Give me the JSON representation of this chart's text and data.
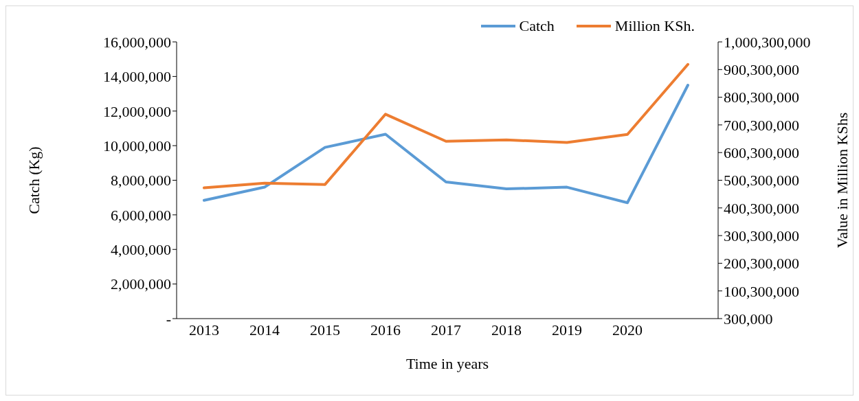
{
  "chart_data": {
    "type": "line",
    "xlabel": "Time in years",
    "ylabel": "Catch (Kg)",
    "y2label": "Value in Million KShs",
    "categories": [
      "2013",
      "2014",
      "2015",
      "2016",
      "2017",
      "2018",
      "2019",
      "2020",
      null
    ],
    "series": [
      {
        "name": "Catch",
        "color": "#5b9bd5",
        "values": [
          6840000,
          7600000,
          9900000,
          10660000,
          7900000,
          7500000,
          7600000,
          6700000,
          13500000
        ]
      },
      {
        "name": "Million KSh.",
        "color": "#ed7d31",
        "axis": "y2",
        "values": [
          473000000,
          490000000,
          485000000,
          739000000,
          641000000,
          646000000,
          637000000,
          666000000,
          919000000
        ]
      }
    ],
    "ylim": [
      0,
      16000000
    ],
    "yticks": [
      {
        "value": 0,
        "label": "-"
      },
      {
        "value": 2000000,
        "label": "2,000,000"
      },
      {
        "value": 4000000,
        "label": "4,000,000"
      },
      {
        "value": 6000000,
        "label": "6,000,000"
      },
      {
        "value": 8000000,
        "label": "8,000,000"
      },
      {
        "value": 10000000,
        "label": "10,000,000"
      },
      {
        "value": 12000000,
        "label": "12,000,000"
      },
      {
        "value": 14000000,
        "label": "14,000,000"
      },
      {
        "value": 16000000,
        "label": "16,000,000"
      }
    ],
    "y2lim": [
      300000,
      1000300000
    ],
    "y2ticks": [
      {
        "value": 300000,
        "label": "300,000"
      },
      {
        "value": 100300000,
        "label": "100,300,000"
      },
      {
        "value": 200300000,
        "label": "200,300,000"
      },
      {
        "value": 300300000,
        "label": "300,300,000"
      },
      {
        "value": 400300000,
        "label": "400,300,000"
      },
      {
        "value": 500300000,
        "label": "500,300,000"
      },
      {
        "value": 600300000,
        "label": "600,300,000"
      },
      {
        "value": 700300000,
        "label": "700,300,000"
      },
      {
        "value": 800300000,
        "label": "800,300,000"
      },
      {
        "value": 900300000,
        "label": "900,300,000"
      },
      {
        "value": 1000300000,
        "label": "1,000,300,000"
      }
    ],
    "grid": false,
    "legend": "top right",
    "marker": "none",
    "line_style": "solid"
  }
}
